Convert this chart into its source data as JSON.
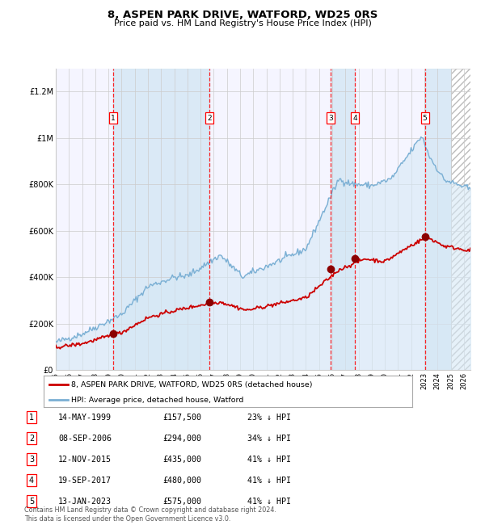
{
  "title": "8, ASPEN PARK DRIVE, WATFORD, WD25 0RS",
  "subtitle": "Price paid vs. HM Land Registry's House Price Index (HPI)",
  "xlim": [
    1995,
    2026.5
  ],
  "ylim": [
    0,
    1300000
  ],
  "yticks": [
    0,
    200000,
    400000,
    600000,
    800000,
    1000000,
    1200000
  ],
  "ytick_labels": [
    "£0",
    "£200K",
    "£400K",
    "£600K",
    "£800K",
    "£1M",
    "£1.2M"
  ],
  "xticks": [
    1995,
    1996,
    1997,
    1998,
    1999,
    2000,
    2001,
    2002,
    2003,
    2004,
    2005,
    2006,
    2007,
    2008,
    2009,
    2010,
    2011,
    2012,
    2013,
    2014,
    2015,
    2016,
    2017,
    2018,
    2019,
    2020,
    2021,
    2022,
    2023,
    2024,
    2025,
    2026
  ],
  "sale_dates_decimal": [
    1999.37,
    2006.68,
    2015.87,
    2017.72,
    2023.04
  ],
  "sale_prices": [
    157500,
    294000,
    435000,
    480000,
    575000
  ],
  "sale_labels": [
    "1",
    "2",
    "3",
    "4",
    "5"
  ],
  "sale_date_strings": [
    "14-MAY-1999",
    "08-SEP-2006",
    "12-NOV-2015",
    "19-SEP-2017",
    "13-JAN-2023"
  ],
  "sale_price_strings": [
    "£157,500",
    "£294,000",
    "£435,000",
    "£480,000",
    "£575,000"
  ],
  "sale_hpi_strings": [
    "23% ↓ HPI",
    "34% ↓ HPI",
    "41% ↓ HPI",
    "41% ↓ HPI",
    "41% ↓ HPI"
  ],
  "red_line_color": "#cc0000",
  "blue_line_color": "#7aafd4",
  "blue_fill_color": "#d6e8f5",
  "legend_label_red": "8, ASPEN PARK DRIVE, WATFORD, WD25 0RS (detached house)",
  "legend_label_blue": "HPI: Average price, detached house, Watford",
  "footer_text": "Contains HM Land Registry data © Crown copyright and database right 2024.\nThis data is licensed under the Open Government Licence v3.0.",
  "background_color": "#ffffff",
  "plot_bg_color": "#f5f5ff",
  "hatch_start": 2025.0
}
